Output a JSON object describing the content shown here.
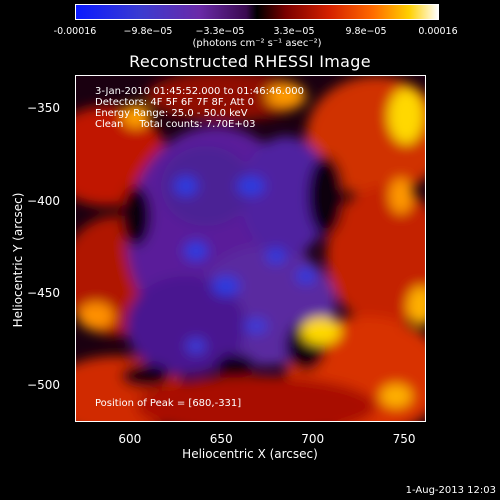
{
  "colorbar": {
    "ticks": [
      "-0.00016",
      "−9.8e−05",
      "−3.3e−05",
      "3.3e−05",
      "9.8e−05",
      "0.00016"
    ],
    "units": "(photons cm⁻² s⁻¹ asec⁻²)"
  },
  "chart_data": {
    "type": "heatmap",
    "title": "Reconstructed RHESSI Image",
    "xlabel": "Heliocentric X (arcsec)",
    "ylabel": "Heliocentric Y (arcsec)",
    "xlim": [
      570,
      762
    ],
    "ylim": [
      -520,
      -332
    ],
    "x_ticks": [
      600,
      650,
      700,
      750
    ],
    "y_ticks": [
      -350,
      -400,
      -450,
      -500
    ],
    "colorscale_range": [
      -0.00016,
      0.00016
    ],
    "peak": [
      680,
      -331
    ],
    "annotations": [
      "3-Jan-2010 01:45:52.000 to 01:46:46.000",
      "Detectors: 4F 5F 6F 7F 8F, Att 0",
      "Energy Range: 25.0 - 50.0 keV",
      "Clean     Total counts: 7.70E+03",
      "Position of Peak = [680,-331]"
    ]
  },
  "timestamp": "1-Aug-2013 12:03"
}
